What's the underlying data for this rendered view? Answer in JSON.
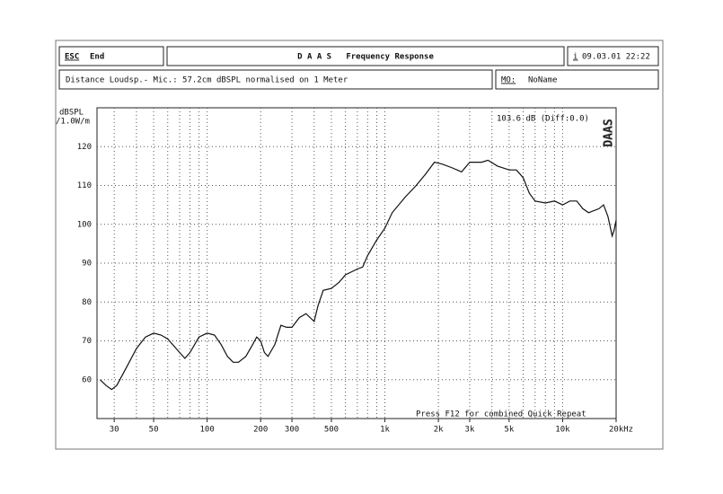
{
  "header": {
    "esc_key": "ESC",
    "esc_label": "End",
    "title": "D A A S   Frequency Response",
    "info_key": "i",
    "datetime": "09.03.01 22:22",
    "distance": "Distance Loudsp.- Mic.: 57.2cm dBSPL normalised on 1 Meter",
    "mo_key": "MO:",
    "mo_label": "NoName"
  },
  "chart_data": {
    "type": "line",
    "xscale": "log",
    "grid": true,
    "color": "#111111",
    "ylabel": [
      "dBSPL",
      "/1.0W/m"
    ],
    "annotations": [
      "103.6 dB (Diff:0.0)",
      "Press F12 for combined Quick Repeat"
    ],
    "watermark": "DAAS",
    "xlim": [
      24,
      20000
    ],
    "ylim": [
      50,
      130
    ],
    "yticks": [
      60,
      70,
      80,
      90,
      100,
      110,
      120
    ],
    "xticks": [
      30,
      50,
      100,
      200,
      300,
      500,
      {
        "value": 1000,
        "label": "1k"
      },
      {
        "value": 2000,
        "label": "2k"
      },
      {
        "value": 3000,
        "label": "3k"
      },
      {
        "value": 5000,
        "label": "5k"
      },
      {
        "value": 10000,
        "label": "10k"
      },
      {
        "value": 20000,
        "label": "20kHz"
      }
    ],
    "xgrid": [
      30,
      40,
      50,
      60,
      70,
      80,
      90,
      100,
      200,
      300,
      400,
      500,
      600,
      700,
      800,
      900,
      1000,
      2000,
      3000,
      4000,
      5000,
      6000,
      7000,
      8000,
      9000,
      10000
    ],
    "x": [
      25,
      27,
      29,
      31,
      35,
      40,
      45,
      50,
      55,
      60,
      70,
      75,
      80,
      90,
      100,
      110,
      120,
      130,
      140,
      150,
      165,
      180,
      190,
      200,
      210,
      220,
      240,
      260,
      280,
      300,
      330,
      360,
      400,
      420,
      450,
      500,
      550,
      600,
      700,
      750,
      800,
      900,
      1000,
      1100,
      1300,
      1500,
      1700,
      1900,
      2100,
      2400,
      2700,
      3000,
      3500,
      3800,
      4300,
      5000,
      5500,
      6000,
      6500,
      7000,
      8000,
      9000,
      10000,
      11000,
      12000,
      13000,
      14000,
      16000,
      17000,
      18000,
      19000,
      19500,
      20000
    ],
    "values": [
      60,
      58.5,
      57.5,
      58.5,
      63,
      68,
      71,
      72,
      71.5,
      70.5,
      67,
      65.5,
      67,
      71,
      72,
      71.5,
      69,
      66,
      64.5,
      64.5,
      66,
      69,
      71,
      70,
      67,
      66,
      69,
      74,
      73.5,
      73.5,
      76,
      77,
      75,
      79,
      83,
      83.5,
      85,
      87,
      88.5,
      89,
      92,
      96,
      99,
      103,
      107,
      110,
      113,
      116,
      115.5,
      114.5,
      113.5,
      116,
      116,
      116.5,
      115,
      114,
      114,
      112,
      108,
      106,
      105.5,
      106,
      105,
      106,
      106,
      104,
      103,
      104,
      105,
      102,
      97,
      98.5,
      101
    ]
  }
}
